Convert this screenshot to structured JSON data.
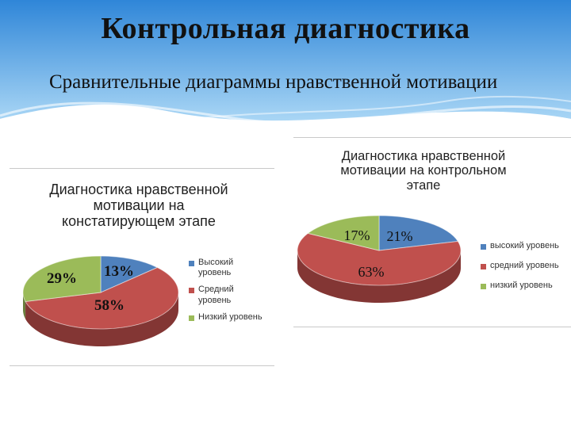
{
  "slide": {
    "title": "Контрольная диагностика",
    "subtitle": "Сравнительные диаграммы нравственной мотивации"
  },
  "colors": {
    "banner_top": "#2f86d8",
    "banner_bottom": "#a9d6f5",
    "high": "#4f81bd",
    "medium": "#c0504d",
    "low": "#9bbb59"
  },
  "chart_data": [
    {
      "type": "pie",
      "title_lines": [
        "Диагностика нравственной",
        "мотивации на",
        "констатирующем  этапе"
      ],
      "categories": [
        "Высокий уровень",
        "Средний уровень",
        "Низкий уровень"
      ],
      "legend_lines": [
        [
          "Высокий",
          "уровень"
        ],
        [
          "Средний",
          "уровень"
        ],
        [
          "Низкий уровень"
        ]
      ],
      "values": [
        13,
        58,
        29
      ],
      "data_labels": [
        "13%",
        "58%",
        "29%"
      ],
      "legend_position": "right",
      "style": "3d"
    },
    {
      "type": "pie",
      "title_lines": [
        "Диагностика нравственной",
        "мотивации на контрольном",
        "этапе"
      ],
      "categories": [
        "высокий уровень",
        "средний уровень",
        "низкий уровень"
      ],
      "legend_lines": [
        [
          "высокий уровень"
        ],
        [
          "средний уровень"
        ],
        [
          "низкий уровень"
        ]
      ],
      "values": [
        21,
        63,
        17
      ],
      "data_labels": [
        "21%",
        "63%",
        "17%"
      ],
      "legend_position": "right",
      "style": "3d"
    }
  ]
}
